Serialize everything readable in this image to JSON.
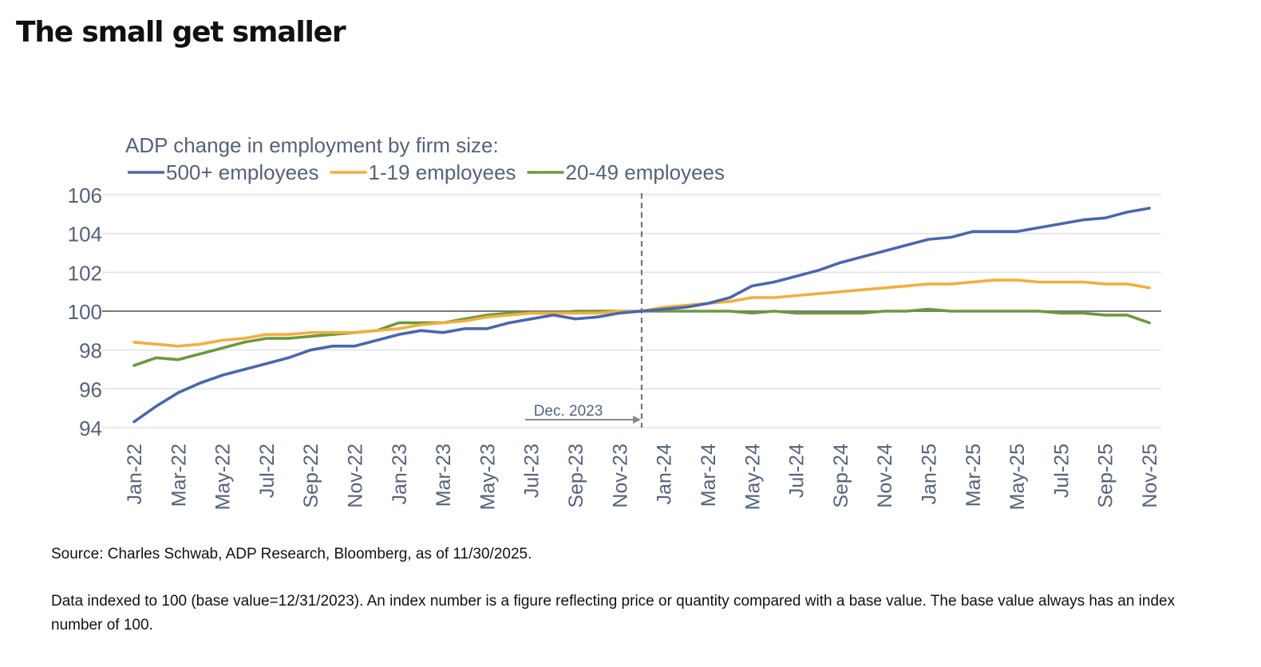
{
  "page": {
    "title": "The small get smaller",
    "source": "Source: Charles Schwab, ADP Research, Bloomberg, as of 11/30/2025.",
    "note": "Data indexed to 100 (base value=12/31/2023). An index number is a figure reflecting price or quantity compared with a base value. The base value always has an index number of 100."
  },
  "chart_data": {
    "type": "line",
    "title": "ADP change in employment by firm size:",
    "legend_position": "top-left",
    "grid": true,
    "ylim": [
      94,
      106
    ],
    "yticks": [
      94,
      96,
      98,
      100,
      102,
      104,
      106
    ],
    "reference_line": 100,
    "x": [
      "Jan-22",
      "Feb-22",
      "Mar-22",
      "Apr-22",
      "May-22",
      "Jun-22",
      "Jul-22",
      "Aug-22",
      "Sep-22",
      "Oct-22",
      "Nov-22",
      "Dec-22",
      "Jan-23",
      "Feb-23",
      "Mar-23",
      "Apr-23",
      "May-23",
      "Jun-23",
      "Jul-23",
      "Aug-23",
      "Sep-23",
      "Oct-23",
      "Nov-23",
      "Dec-23",
      "Jan-24",
      "Feb-24",
      "Mar-24",
      "Apr-24",
      "May-24",
      "Jun-24",
      "Jul-24",
      "Aug-24",
      "Sep-24",
      "Oct-24",
      "Nov-24",
      "Dec-24",
      "Jan-25",
      "Feb-25",
      "Mar-25",
      "Apr-25",
      "May-25",
      "Jun-25",
      "Jul-25",
      "Aug-25",
      "Sep-25",
      "Oct-25",
      "Nov-25"
    ],
    "x_tick_labels": [
      "Jan-22",
      "Mar-22",
      "May-22",
      "Jul-22",
      "Sep-22",
      "Nov-22",
      "Jan-23",
      "Mar-23",
      "May-23",
      "Jul-23",
      "Sep-23",
      "Nov-23",
      "Jan-24",
      "Mar-24",
      "May-24",
      "Jul-24",
      "Sep-24",
      "Nov-24",
      "Jan-25",
      "Mar-25",
      "May-25",
      "Jul-25",
      "Sep-25",
      "Nov-25"
    ],
    "annotation": {
      "label": "Dec. 2023",
      "x": "Dec-23"
    },
    "series": [
      {
        "name": "500+ employees",
        "color": "#4a67ae",
        "values": [
          94.3,
          95.1,
          95.8,
          96.3,
          96.7,
          97.0,
          97.3,
          97.6,
          98.0,
          98.2,
          98.2,
          98.5,
          98.8,
          99.0,
          98.9,
          99.1,
          99.1,
          99.4,
          99.6,
          99.8,
          99.6,
          99.7,
          99.9,
          100.0,
          100.1,
          100.2,
          100.4,
          100.7,
          101.3,
          101.5,
          101.8,
          102.1,
          102.5,
          102.8,
          103.1,
          103.4,
          103.7,
          103.8,
          104.1,
          104.1,
          104.1,
          104.3,
          104.5,
          104.7,
          104.8,
          105.1,
          105.3
        ]
      },
      {
        "name": "1-19 employees",
        "color": "#f2ae3d",
        "values": [
          98.4,
          98.3,
          98.2,
          98.3,
          98.5,
          98.6,
          98.8,
          98.8,
          98.9,
          98.9,
          98.9,
          99.0,
          99.1,
          99.3,
          99.4,
          99.5,
          99.7,
          99.8,
          99.9,
          99.9,
          99.9,
          99.9,
          100.0,
          100.0,
          100.2,
          100.3,
          100.4,
          100.5,
          100.7,
          100.7,
          100.8,
          100.9,
          101.0,
          101.1,
          101.2,
          101.3,
          101.4,
          101.4,
          101.5,
          101.6,
          101.6,
          101.5,
          101.5,
          101.5,
          101.4,
          101.4,
          101.2
        ]
      },
      {
        "name": "20-49 employees",
        "color": "#6a9a3a",
        "values": [
          97.2,
          97.6,
          97.5,
          97.8,
          98.1,
          98.4,
          98.6,
          98.6,
          98.7,
          98.8,
          98.9,
          99.0,
          99.4,
          99.4,
          99.4,
          99.6,
          99.8,
          99.9,
          99.9,
          99.9,
          100.0,
          100.0,
          100.0,
          100.0,
          100.0,
          100.0,
          100.0,
          100.0,
          99.9,
          100.0,
          99.9,
          99.9,
          99.9,
          99.9,
          100.0,
          100.0,
          100.1,
          100.0,
          100.0,
          100.0,
          100.0,
          100.0,
          99.9,
          99.9,
          99.8,
          99.8,
          99.4
        ]
      }
    ]
  }
}
